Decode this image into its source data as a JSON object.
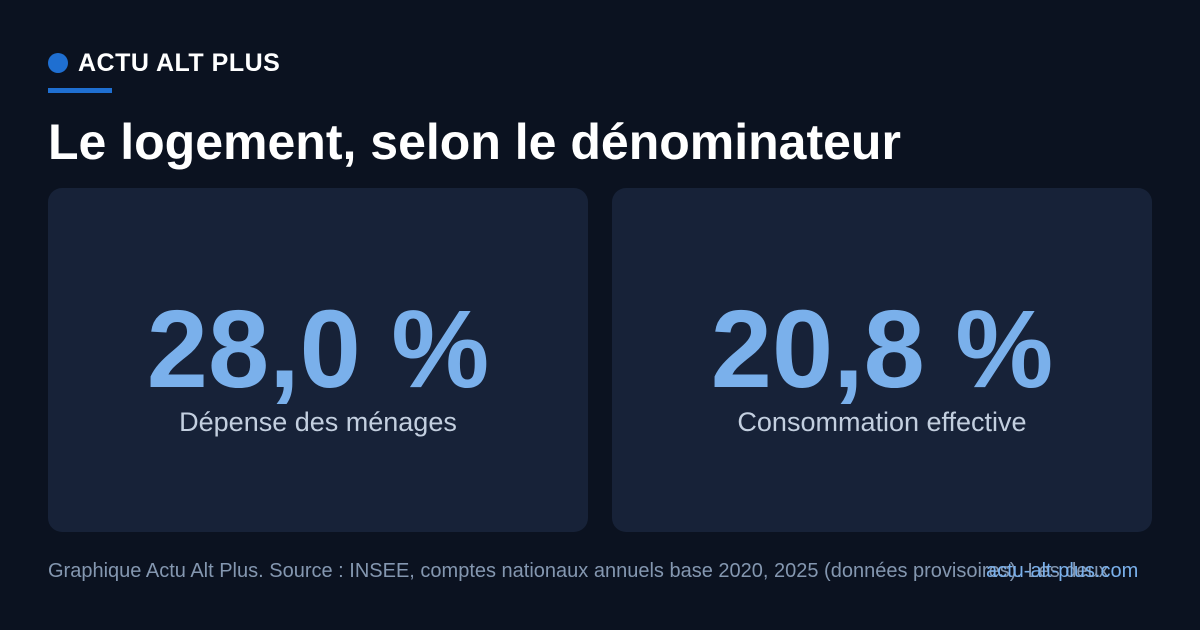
{
  "brand": {
    "name": "ACTU ALT PLUS",
    "accent": "#1f6fd1"
  },
  "title": "Le logement, selon le dénominateur",
  "chart_data": {
    "type": "table",
    "title": "Le logement, selon le dénominateur",
    "items": [
      {
        "label": "Dépense des ménages",
        "value": 28.0,
        "display": "28,0 %"
      },
      {
        "label": "Consommation effective",
        "value": 20.8,
        "display": "20,8 %"
      }
    ],
    "unit": "%"
  },
  "cards": [
    {
      "value": "28,0 %",
      "label": "Dépense des ménages"
    },
    {
      "value": "20,8 %",
      "label": "Consommation effective"
    }
  ],
  "footer": {
    "source": "Graphique Actu Alt Plus. Source : INSEE, comptes nationaux annuels base 2020, 2025 (données provisoires). Les deux",
    "domain": "actu-alt-plus.com"
  },
  "colors": {
    "background": "#0b1220",
    "card": "#172238",
    "value": "#7ab0eb"
  }
}
